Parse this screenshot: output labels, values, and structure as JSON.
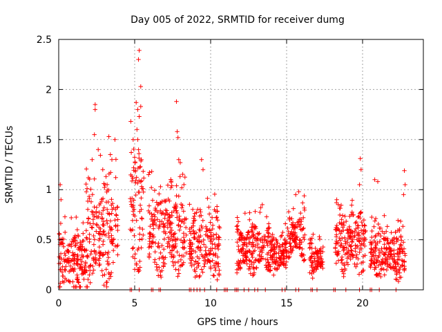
{
  "chart_data": {
    "type": "scatter",
    "title": "Day 005 of 2022, SRMTID for receiver dumg",
    "xlabel": "GPS time / hours",
    "ylabel": "SRMTID / TECUs",
    "xlim": [
      0,
      24
    ],
    "ylim": [
      0,
      2.5
    ],
    "xticks": [
      0,
      5,
      10,
      15,
      20
    ],
    "yticks": [
      0,
      0.5,
      1,
      1.5,
      2,
      2.5
    ],
    "xtick_labels": [
      "0",
      "5",
      "10",
      "15",
      "20"
    ],
    "ytick_labels": [
      "0",
      "0.5",
      "1",
      "1.5",
      "2",
      "2.5"
    ],
    "grid": true,
    "marker": "+",
    "color": "#ff0000",
    "series": [
      {
        "name": "SRMTID",
        "segments": [
          {
            "x0": 0.0,
            "x1": 1.8,
            "base": 0.25,
            "spread": 0.3
          },
          {
            "x0": 1.8,
            "x1": 3.9,
            "base": 0.55,
            "spread": 0.55
          },
          {
            "x0": 4.7,
            "x1": 5.6,
            "base": 0.8,
            "spread": 0.6
          },
          {
            "x0": 5.9,
            "x1": 8.4,
            "base": 0.55,
            "spread": 0.4
          },
          {
            "x0": 8.6,
            "x1": 10.6,
            "base": 0.45,
            "spread": 0.35
          },
          {
            "x0": 11.7,
            "x1": 13.9,
            "base": 0.4,
            "spread": 0.25
          },
          {
            "x0": 13.9,
            "x1": 15.1,
            "base": 0.35,
            "spread": 0.2
          },
          {
            "x0": 15.1,
            "x1": 16.2,
            "base": 0.55,
            "spread": 0.25
          },
          {
            "x0": 16.5,
            "x1": 17.4,
            "base": 0.3,
            "spread": 0.2
          },
          {
            "x0": 18.2,
            "x1": 20.2,
            "base": 0.45,
            "spread": 0.3
          },
          {
            "x0": 20.5,
            "x1": 22.8,
            "base": 0.35,
            "spread": 0.25
          }
        ],
        "peaks": [
          [
            2.4,
            1.85
          ],
          [
            2.4,
            1.8
          ],
          [
            2.35,
            1.55
          ],
          [
            2.2,
            1.3
          ],
          [
            2.6,
            1.4
          ],
          [
            3.3,
            1.53
          ],
          [
            3.7,
            1.5
          ],
          [
            3.4,
            1.35
          ],
          [
            2.9,
            1.2
          ],
          [
            3.5,
            1.3
          ],
          [
            5.3,
            2.39
          ],
          [
            5.25,
            2.3
          ],
          [
            5.4,
            2.03
          ],
          [
            5.1,
            1.87
          ],
          [
            5.2,
            1.8
          ],
          [
            5.4,
            1.83
          ],
          [
            5.3,
            1.73
          ],
          [
            5.15,
            1.6
          ],
          [
            5.2,
            1.5
          ],
          [
            4.9,
            1.5
          ],
          [
            7.75,
            1.88
          ],
          [
            7.8,
            1.58
          ],
          [
            7.85,
            1.52
          ],
          [
            7.9,
            1.3
          ],
          [
            8.0,
            1.27
          ],
          [
            9.4,
            1.3
          ],
          [
            9.5,
            1.2
          ],
          [
            6.1,
            1.02
          ],
          [
            0.1,
            1.05
          ],
          [
            0.15,
            0.9
          ],
          [
            19.85,
            1.31
          ],
          [
            19.9,
            1.2
          ],
          [
            19.8,
            1.05
          ],
          [
            18.3,
            0.9
          ],
          [
            18.4,
            0.85
          ],
          [
            22.75,
            1.19
          ],
          [
            22.8,
            1.05
          ],
          [
            22.7,
            0.95
          ],
          [
            20.8,
            1.1
          ],
          [
            21.0,
            1.08
          ],
          [
            15.8,
            0.98
          ],
          [
            15.6,
            0.95
          ],
          [
            13.4,
            0.85
          ],
          [
            13.3,
            0.82
          ],
          [
            16.1,
            0.72
          ]
        ],
        "zero_markers": [
          [
            4.7,
            0
          ],
          [
            4.8,
            0
          ],
          [
            5.3,
            0
          ],
          [
            6.1,
            0
          ],
          [
            6.2,
            0
          ],
          [
            6.6,
            0
          ],
          [
            6.7,
            0
          ],
          [
            8.6,
            0
          ],
          [
            8.7,
            0
          ],
          [
            8.9,
            0
          ],
          [
            9.1,
            0
          ],
          [
            9.3,
            0
          ],
          [
            9.6,
            0
          ],
          [
            10.4,
            0
          ],
          [
            10.9,
            0
          ],
          [
            11.0,
            0
          ],
          [
            11.1,
            0
          ],
          [
            11.6,
            0
          ],
          [
            11.7,
            0
          ],
          [
            11.8,
            0
          ],
          [
            12.2,
            0
          ],
          [
            12.5,
            0
          ],
          [
            12.9,
            0
          ],
          [
            13.1,
            0
          ],
          [
            13.6,
            0
          ],
          [
            14.7,
            0
          ],
          [
            14.9,
            0
          ],
          [
            15.6,
            0
          ],
          [
            15.8,
            0
          ],
          [
            16.6,
            0
          ],
          [
            16.7,
            0
          ],
          [
            17.0,
            0
          ],
          [
            18.1,
            0
          ],
          [
            18.2,
            0
          ],
          [
            18.9,
            0
          ],
          [
            19.8,
            0
          ],
          [
            20.5,
            0
          ],
          [
            20.6,
            0
          ],
          [
            21.1,
            0
          ],
          [
            22.2,
            0
          ]
        ]
      }
    ]
  }
}
